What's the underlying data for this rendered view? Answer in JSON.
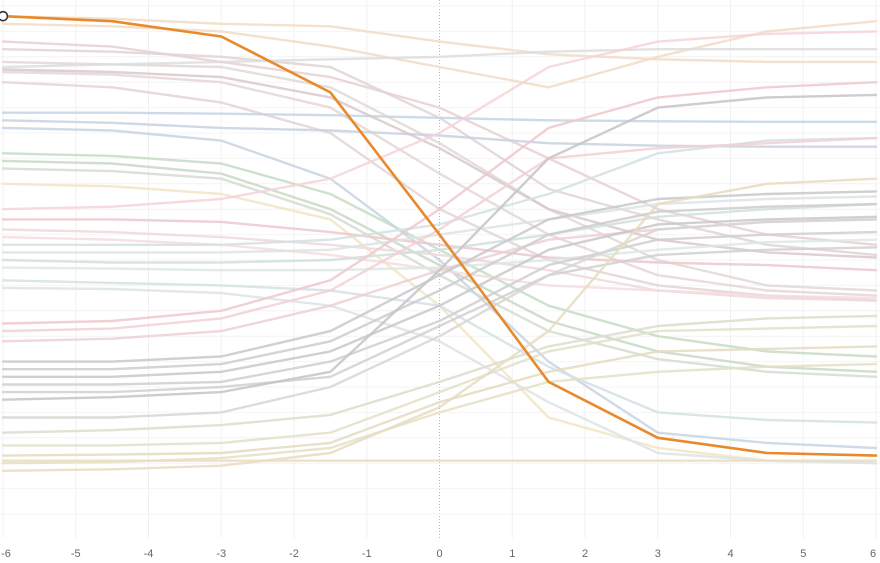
{
  "chart_data": {
    "type": "line",
    "title": "",
    "xlabel": "",
    "ylabel": "",
    "xlim": [
      -6,
      6
    ],
    "ylim": [
      0,
      100
    ],
    "x": [
      -6,
      -4.5,
      -3,
      -1.5,
      0,
      1.5,
      3,
      4.5,
      6
    ],
    "x_ticks": [
      -6,
      -5,
      -4,
      -3,
      -2,
      -1,
      0,
      1,
      2,
      3,
      4,
      5,
      6
    ],
    "x_tick_labels": [
      "-6",
      "-5",
      "-4",
      "-3",
      "-2",
      "-1",
      "0",
      "1",
      "2",
      "3",
      "4",
      "5",
      "6"
    ],
    "grid": true,
    "zero_line": "dotted",
    "highlight": {
      "color": "#e8892c",
      "values": [
        98,
        97,
        94,
        83,
        55,
        26,
        15,
        12,
        11.5
      ]
    },
    "background_series": [
      {
        "color": "#f2dcc4",
        "values": [
          98,
          97.5,
          96.5,
          96,
          93,
          90.5,
          89.5,
          89,
          89
        ]
      },
      {
        "color": "#f2dcc4",
        "values": [
          96.5,
          96,
          95,
          92,
          88,
          84,
          90,
          95,
          97
        ]
      },
      {
        "color": "#e8d0d0",
        "values": [
          93,
          92,
          89,
          86,
          80,
          70,
          60,
          55,
          53
        ]
      },
      {
        "color": "#e0d4d4",
        "values": [
          91.5,
          91,
          90,
          88,
          78,
          64,
          58,
          53,
          51
        ]
      },
      {
        "color": "#e0d8d4",
        "values": [
          89,
          88.5,
          88,
          84,
          73,
          60,
          50,
          45,
          44
        ]
      },
      {
        "color": "#e4d6d6",
        "values": [
          87,
          86.5,
          85,
          80,
          67,
          55,
          47,
          44,
          43
        ]
      },
      {
        "color": "#e2d4d4",
        "values": [
          85,
          84,
          81,
          75,
          60,
          50,
          45,
          43,
          42
        ]
      },
      {
        "color": "#dedcdc",
        "values": [
          88,
          88.5,
          89,
          89.5,
          90,
          91,
          91.5,
          91.5,
          91.5
        ]
      },
      {
        "color": "#c4d4e4",
        "values": [
          79,
          79,
          78.8,
          78.5,
          78,
          77.5,
          77.3,
          77.2,
          77.2
        ]
      },
      {
        "color": "#c8d2de",
        "values": [
          77.5,
          77,
          76,
          75.5,
          74.5,
          73,
          72.5,
          72.3,
          72.3
        ]
      },
      {
        "color": "#d8c8cc",
        "values": [
          87.5,
          87,
          86,
          82,
          72,
          60,
          54,
          51.5,
          50.5
        ]
      },
      {
        "color": "#c4dcc4",
        "values": [
          71,
          70.5,
          69,
          63,
          52,
          41,
          35,
          32,
          31
        ]
      },
      {
        "color": "#c8d8c4",
        "values": [
          69.5,
          69,
          67,
          60,
          49,
          38,
          32,
          29,
          28
        ]
      },
      {
        "color": "#d4dcd0",
        "values": [
          68,
          67.5,
          66,
          59,
          47,
          36,
          30.5,
          28,
          27
        ]
      },
      {
        "color": "#c8d4e0",
        "values": [
          76,
          75.5,
          73.5,
          66,
          50,
          30,
          16,
          14,
          13
        ]
      },
      {
        "color": "#f2e4c4",
        "values": [
          65,
          64.5,
          63,
          58,
          41,
          19,
          13,
          10.5,
          10
        ]
      },
      {
        "color": "#f4d4d8",
        "values": [
          60,
          60.5,
          62,
          66,
          75,
          88,
          93,
          94.5,
          95
        ]
      },
      {
        "color": "#ecc8cc",
        "values": [
          58,
          58,
          57.5,
          55.5,
          53,
          50.5,
          49.5,
          49,
          48
        ]
      },
      {
        "color": "#f0d8da",
        "values": [
          56,
          55.5,
          54.5,
          53,
          51,
          48,
          44,
          42.5,
          42
        ]
      },
      {
        "color": "#f4dcde",
        "values": [
          54.5,
          54,
          53,
          51,
          48,
          45,
          44,
          43,
          42.5
        ]
      },
      {
        "color": "#d4e0e4",
        "values": [
          53,
          53,
          53,
          54,
          57,
          63,
          71,
          73.5,
          74
        ]
      },
      {
        "color": "#dce4e0",
        "values": [
          51.5,
          51.5,
          51.5,
          52,
          55,
          58,
          61,
          62,
          62.5
        ]
      },
      {
        "color": "#d0e0dc",
        "values": [
          50,
          49.5,
          49.5,
          50,
          52,
          55,
          58.5,
          60,
          61
        ]
      },
      {
        "color": "#dce8e4",
        "values": [
          48.5,
          48.3,
          48,
          48,
          48.5,
          50,
          52,
          53.5,
          54
        ]
      },
      {
        "color": "#d4e0e4",
        "values": [
          46,
          45.5,
          45,
          44,
          41,
          29,
          20,
          18.5,
          18
        ]
      },
      {
        "color": "#dce4e4",
        "values": [
          44.5,
          44.3,
          43.5,
          41,
          34,
          22,
          12,
          10.5,
          10
        ]
      },
      {
        "color": "#eec8cc",
        "values": [
          37.5,
          38,
          40,
          46,
          60,
          76,
          82,
          84,
          85
        ]
      },
      {
        "color": "#f2d0d4",
        "values": [
          36,
          36.5,
          38.5,
          44,
          56,
          70,
          72,
          73,
          74
        ]
      },
      {
        "color": "#ecd0d4",
        "values": [
          34,
          34.5,
          36,
          41,
          48,
          54,
          56,
          57.5,
          58
        ]
      },
      {
        "color": "#c8c8cc",
        "values": [
          30,
          30,
          31,
          36,
          47,
          58,
          62,
          63,
          63.5
        ]
      },
      {
        "color": "#cccccc",
        "values": [
          28.5,
          28.5,
          29.5,
          34,
          44,
          55,
          59.5,
          60.5,
          61
        ]
      },
      {
        "color": "#c8c8c8",
        "values": [
          27,
          27,
          28,
          32,
          41,
          52,
          57,
          58,
          58.5
        ]
      },
      {
        "color": "#cfcfd2",
        "values": [
          25.5,
          25.5,
          26,
          30,
          38,
          49,
          54,
          55,
          55.5
        ]
      },
      {
        "color": "#d0d0d0",
        "values": [
          24,
          24,
          25,
          27,
          37,
          47,
          51,
          52,
          52.5
        ]
      },
      {
        "color": "#c4c4c8",
        "values": [
          22.5,
          23,
          24,
          28,
          48,
          70,
          80,
          82,
          82.5
        ]
      },
      {
        "color": "#d6d6d2",
        "values": [
          19,
          19,
          20,
          25,
          35,
          47,
          56,
          57.5,
          58
        ]
      },
      {
        "color": "#dcdccc",
        "values": [
          16,
          16.5,
          17.5,
          19.5,
          26,
          33,
          37,
          38.5,
          39
        ]
      },
      {
        "color": "#e0e0c8",
        "values": [
          13.5,
          13.5,
          14,
          16,
          24,
          32,
          36,
          36.5,
          37
        ]
      },
      {
        "color": "#e4dcc0",
        "values": [
          11.5,
          11.7,
          12,
          14,
          22,
          28,
          32,
          32.5,
          33
        ]
      },
      {
        "color": "#e4e0c4",
        "values": [
          10,
          10.2,
          11,
          13,
          20,
          26,
          28,
          29,
          29.5
        ]
      },
      {
        "color": "#e8dcc0",
        "values": [
          8.5,
          8.8,
          9.5,
          12,
          21,
          36,
          61,
          65,
          66
        ]
      },
      {
        "color": "#ecdcbc",
        "values": [
          10.5,
          10.5,
          10.5,
          10.5,
          10.5,
          10.5,
          10.5,
          10.5,
          10.5
        ]
      }
    ]
  }
}
